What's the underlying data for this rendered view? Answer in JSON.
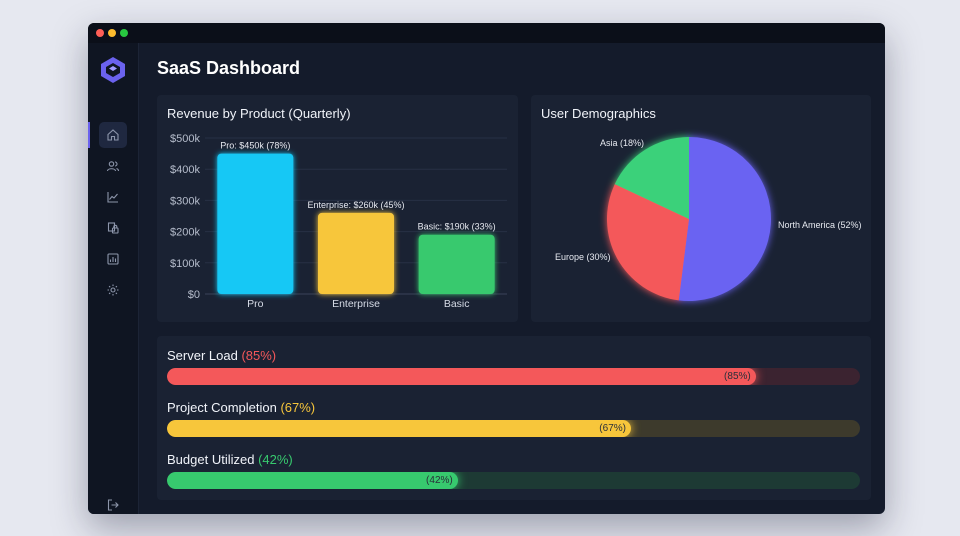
{
  "app": {
    "title": "SaaS Dashboard"
  },
  "sidebar": {
    "items": [
      {
        "icon": "home-icon",
        "active": true
      },
      {
        "icon": "users-icon",
        "active": false
      },
      {
        "icon": "trend-line-icon",
        "active": false
      },
      {
        "icon": "security-docs-icon",
        "active": false
      },
      {
        "icon": "bar-report-icon",
        "active": false
      },
      {
        "icon": "gear-icon",
        "active": false
      }
    ],
    "bottom_icon": "logout-icon",
    "accent": "#6b62ee"
  },
  "bar_panel": {
    "title": "Revenue by Product (Quarterly)"
  },
  "pie_panel": {
    "title": "User Demographics"
  },
  "chart_data": [
    {
      "type": "bar",
      "title": "Revenue by Product (Quarterly)",
      "categories": [
        "Pro",
        "Enterprise",
        "Basic"
      ],
      "values": [
        450,
        260,
        190
      ],
      "unit": "k",
      "ylim": [
        0,
        500
      ],
      "yticks": [
        0,
        100,
        200,
        300,
        400,
        500
      ],
      "ytick_labels": [
        "$0",
        "$100k",
        "$200k",
        "$300k",
        "$400k",
        "$500k"
      ],
      "data_labels": [
        "Pro: $450k (78%)",
        "Enterprise: $260k (45%)",
        "Basic: $190k (33%)"
      ],
      "colors": [
        "#16c8f5",
        "#f7c63b",
        "#37c96e"
      ],
      "grid": true
    },
    {
      "type": "pie",
      "title": "User Demographics",
      "labels": [
        "North America",
        "Europe",
        "Asia"
      ],
      "values": [
        52,
        30,
        18
      ],
      "slice_labels": [
        "North America (52%)",
        "Europe (30%)",
        "Asia (18%)"
      ],
      "colors": [
        "#6b63f2",
        "#f4585a",
        "#3bd17a"
      ]
    }
  ],
  "progress": [
    {
      "name": "Server Load",
      "pct_text": "(85%)",
      "bar_text": "(85%)",
      "value": 85,
      "color": "#f4585a",
      "track": "#3b2330"
    },
    {
      "name": "Project Completion",
      "pct_text": "(67%)",
      "bar_text": "(67%)",
      "value": 67,
      "color": "#f7c63b",
      "track": "#3d3a2c"
    },
    {
      "name": "Budget Utilized",
      "pct_text": "(42%)",
      "bar_text": "(42%)",
      "value": 42,
      "color": "#37c96e",
      "track": "#1d3a34"
    }
  ]
}
